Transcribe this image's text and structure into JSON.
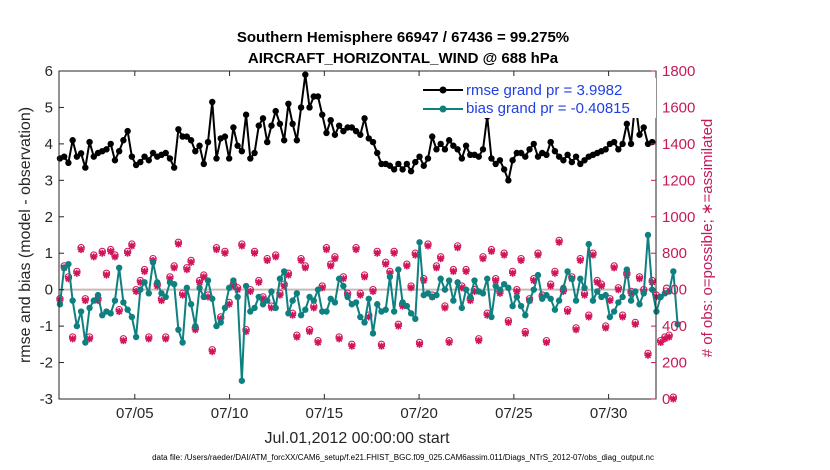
{
  "chart_data": {
    "type": "line",
    "title_line1": "Southern Hemisphere 66947 / 67436 = 99.275%",
    "title_line2": "AIRCRAFT_HORIZONTAL_WIND @ 688 hPa",
    "xlabel": "Jul.01,2012 00:00:00 start",
    "ylabel_left": "rmse and bias (model - observation)",
    "ylabel_right": "# of obs: o=possible; ∗=assimilated",
    "footer": "data file: /Users/raeder/DAI/ATM_forcXX/CAM6_setup/f.e21.FHIST_BGC.f09_025.CAM6assim.011/Diags_NTrS_2012-07/obs_diag_output.nc",
    "xlim": [
      1,
      32.5
    ],
    "ylim_left": [
      -3,
      6
    ],
    "ylim_right": [
      0,
      1800
    ],
    "x_ticks": [
      5,
      10,
      15,
      20,
      25,
      30
    ],
    "x_tick_labels": [
      "07/05",
      "07/10",
      "07/15",
      "07/20",
      "07/25",
      "07/30"
    ],
    "yl_ticks": [
      -3,
      -2,
      -1,
      0,
      1,
      2,
      3,
      4,
      5,
      6
    ],
    "yl_tick_labels": [
      "-3",
      "-2",
      "-1",
      "0",
      "1",
      "2",
      "3",
      "4",
      "5",
      "6"
    ],
    "yr_ticks": [
      0,
      200,
      400,
      600,
      800,
      1000,
      1200,
      1400,
      1600,
      1800
    ],
    "yr_tick_labels": [
      "0",
      "200",
      "400",
      "600",
      "800",
      "1000",
      "1200",
      "1400",
      "1600",
      "1800"
    ],
    "legend": [
      "rmse grand pr = 3.9982",
      "bias grand pr = -0.40815"
    ],
    "colors": {
      "rmse": "#000000",
      "bias": "#0f8080",
      "obs": "#d1145a",
      "zero_line": "#c8b9b9"
    },
    "rmse": [
      3.6,
      3.65,
      3.48,
      4.1,
      3.65,
      3.74,
      3.35,
      4.05,
      3.65,
      3.75,
      3.8,
      3.85,
      4.0,
      3.55,
      3.8,
      4.1,
      4.35,
      3.65,
      3.42,
      3.5,
      3.65,
      3.55,
      3.75,
      3.65,
      3.7,
      3.75,
      3.6,
      3.35,
      4.4,
      4.2,
      4.2,
      4.1,
      3.8,
      3.95,
      3.45,
      4.05,
      5.15,
      3.6,
      4.15,
      4.2,
      3.6,
      4.45,
      3.95,
      3.8,
      4.8,
      3.6,
      3.75,
      4.5,
      4.7,
      4.05,
      4.5,
      4.9,
      4.55,
      4.1,
      5.1,
      4.55,
      4.1,
      5.0,
      5.9,
      5.0,
      5.3,
      5.3,
      4.8,
      4.3,
      4.65,
      4.25,
      4.5,
      4.35,
      4.45,
      4.45,
      4.35,
      4.25,
      4.7,
      4.15,
      4.05,
      3.75,
      3.45,
      3.45,
      3.4,
      3.3,
      3.45,
      3.3,
      3.45,
      3.25,
      3.5,
      3.65,
      3.4,
      3.6,
      4.2,
      3.85,
      4.0,
      3.85,
      4.1,
      3.95,
      3.85,
      3.6,
      3.95,
      3.7,
      3.7,
      3.65,
      3.85,
      4.75,
      3.6,
      3.45,
      3.55,
      3.3,
      3.0,
      3.55,
      3.75,
      3.75,
      3.65,
      3.85,
      4.0,
      3.65,
      3.75,
      3.7,
      4.05,
      3.8,
      3.65,
      3.55,
      3.7,
      3.5,
      3.65,
      3.45,
      3.55,
      3.65,
      3.7,
      3.75,
      3.8,
      3.85,
      4.0,
      4.05,
      3.85,
      4.0,
      4.55,
      4.0,
      5.15,
      4.25,
      4.45,
      4.0,
      4.05
    ],
    "bias": [
      -0.4,
      0.6,
      0.7,
      -0.3,
      -1.0,
      -0.6,
      -1.45,
      -0.5,
      -0.3,
      -0.15,
      -0.7,
      -0.6,
      -0.65,
      -0.3,
      0.6,
      -0.35,
      -0.55,
      -0.75,
      -1.3,
      0.0,
      0.2,
      -0.1,
      0.75,
      0.2,
      -0.1,
      -0.2,
      0.2,
      0.15,
      -1.1,
      -1.45,
      0.05,
      -0.4,
      -1.0,
      0.05,
      -0.2,
      0.25,
      -0.25,
      -1.0,
      -0.9,
      -0.5,
      0.05,
      0.25,
      -0.2,
      -2.5,
      0.1,
      -0.6,
      -0.5,
      -0.2,
      -0.4,
      -0.3,
      -0.05,
      -0.5,
      0.3,
      0.5,
      -0.65,
      -0.3,
      -0.1,
      -0.7,
      -0.55,
      -0.2,
      -0.3,
      0.0,
      -0.6,
      -0.6,
      -0.25,
      -0.35,
      0.3,
      0.1,
      -0.2,
      -0.4,
      -0.35,
      -0.75,
      -0.9,
      -0.25,
      -1.2,
      -0.4,
      -0.6,
      -0.55,
      0.35,
      -0.6,
      0.55,
      -0.35,
      -0.45,
      -0.65,
      -0.8,
      1.3,
      -0.15,
      -0.1,
      -0.2,
      -0.15,
      0.3,
      0.0,
      0.25,
      -0.3,
      0.2,
      -0.5,
      0.0,
      -0.2,
      0.25,
      -0.05,
      -0.1,
      0.3,
      -0.75,
      0.1,
      0.0,
      0.15,
      0.05,
      -0.45,
      -0.2,
      -0.45,
      -0.7,
      -0.3,
      0.0,
      0.4,
      -0.25,
      -0.15,
      -0.25,
      -0.55,
      -0.3,
      0.05,
      0.5,
      0.3,
      -0.3,
      0.3,
      0.05,
      1.25,
      -0.3,
      -0.05,
      -0.2,
      -0.15,
      -0.75,
      -0.6,
      -0.35,
      -0.2,
      0.55,
      -0.3,
      -0.05,
      -0.4,
      -0.1,
      1.5,
      0.0,
      -0.6,
      -0.2,
      -0.1,
      -0.05,
      0.5,
      -0.95
    ],
    "obs_count": [
      540,
      720,
      660,
      330,
      690,
      820,
      540,
      330,
      780,
      540,
      800,
      680,
      810,
      780,
      480,
      320,
      800,
      840,
      590,
      640,
      700,
      330,
      760,
      620,
      540,
      330,
      660,
      720,
      850,
      570,
      710,
      750,
      380,
      640,
      670,
      560,
      260,
      820,
      440,
      800,
      520,
      620,
      600,
      840,
      370,
      590,
      800,
      640,
      550,
      760,
      500,
      780,
      570,
      620,
      680,
      460,
      340,
      760,
      720,
      370,
      500,
      310,
      610,
      820,
      730,
      770,
      330,
      660,
      570,
      290,
      820,
      570,
      670,
      450,
      590,
      800,
      290,
      740,
      690,
      800,
      400,
      510,
      730,
      610,
      790,
      300,
      650,
      840,
      560,
      720,
      770,
      500,
      310,
      700,
      830,
      610,
      700,
      540,
      590,
      320,
      770,
      460,
      810,
      650,
      580,
      790,
      420,
      690,
      590,
      760,
      360,
      540,
      650,
      790,
      560,
      310,
      620,
      690,
      860,
      590,
      480,
      660,
      380,
      760,
      570,
      450,
      790,
      640,
      620,
      390,
      540,
      720,
      600,
      450,
      680,
      580,
      410,
      660,
      590,
      240,
      640,
      560,
      310,
      330,
      340,
      0
    ],
    "obs_possible_extra_offset": 10
  }
}
